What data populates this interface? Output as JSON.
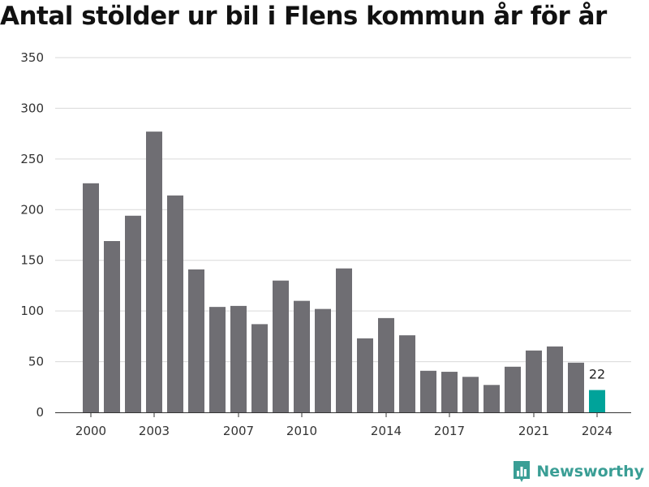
{
  "title": "Antal stölder ur bil i Flens kommun år för år",
  "brand": {
    "name": "Newsworthy",
    "icon": "bar-chart-logo-icon",
    "color": "#3a9e95"
  },
  "colors": {
    "bar": "#6f6e73",
    "highlight": "#00a39a",
    "grid": "#d9d9d9",
    "axis": "#333333"
  },
  "chart_data": {
    "type": "bar",
    "title": "Antal stölder ur bil i Flens kommun år för år",
    "xlabel": "",
    "ylabel": "",
    "ylim": [
      0,
      350
    ],
    "yticks": [
      0,
      50,
      100,
      150,
      200,
      250,
      300,
      350
    ],
    "grid": true,
    "categories": [
      2000,
      2001,
      2002,
      2003,
      2004,
      2005,
      2006,
      2007,
      2008,
      2009,
      2010,
      2011,
      2012,
      2013,
      2014,
      2015,
      2016,
      2017,
      2018,
      2019,
      2020,
      2021,
      2022,
      2023,
      2024
    ],
    "values": [
      226,
      169,
      194,
      277,
      214,
      141,
      104,
      105,
      87,
      130,
      110,
      102,
      142,
      73,
      93,
      76,
      41,
      40,
      35,
      27,
      45,
      61,
      65,
      49,
      22
    ],
    "xtick_labels": [
      "2000",
      "2003",
      "2007",
      "2010",
      "2014",
      "2017",
      "2021",
      "2024"
    ],
    "highlight": {
      "category": 2024,
      "label": "22"
    }
  }
}
